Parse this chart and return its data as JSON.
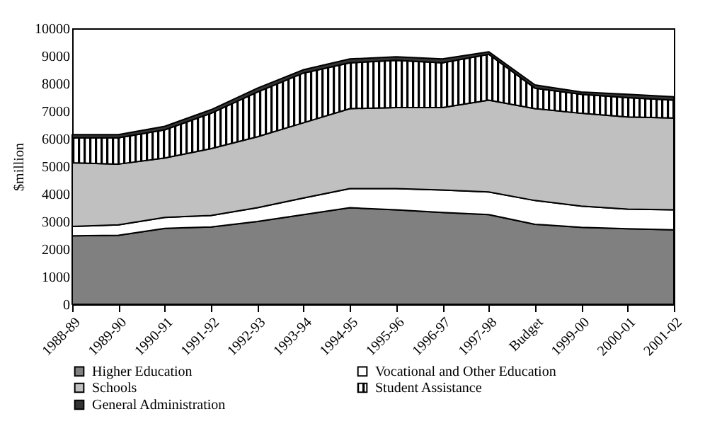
{
  "chart_data": {
    "type": "area",
    "stacked": true,
    "ylabel": "$million",
    "categories": [
      "1988-89",
      "1989-90",
      "1990-91",
      "1991-92",
      "1992-93",
      "1993-94",
      "1994-95",
      "1995-96",
      "1996-97",
      "1997-98",
      "Budget",
      "1999-00",
      "2000-01",
      "2001-02"
    ],
    "series": [
      {
        "name": "Higher Education",
        "color": "#808080",
        "values": [
          2480,
          2500,
          2750,
          2800,
          3000,
          3250,
          3500,
          3420,
          3330,
          3250,
          2900,
          2790,
          2740,
          2700
        ]
      },
      {
        "name": "Vocational and Other Education",
        "color": "#ffffff",
        "values": [
          340,
          380,
          400,
          420,
          500,
          600,
          690,
          770,
          810,
          820,
          860,
          770,
          710,
          720
        ]
      },
      {
        "name": "Schools",
        "color": "#c0c0c0",
        "values": [
          2310,
          2200,
          2150,
          2420,
          2570,
          2730,
          2900,
          2940,
          2990,
          3330,
          3330,
          3360,
          3340,
          3330
        ]
      },
      {
        "name": "Student Assistance",
        "color": "#000000",
        "values": [
          900,
          950,
          1020,
          1280,
          1620,
          1800,
          1660,
          1710,
          1620,
          1660,
          740,
          690,
          700,
          650
        ]
      },
      {
        "name": "General Administration",
        "color": "#333333",
        "values": [
          120,
          120,
          130,
          130,
          140,
          120,
          140,
          130,
          140,
          90,
          120,
          80,
          120,
          120
        ]
      }
    ],
    "ylim": [
      0,
      10000
    ],
    "yticks": [
      0,
      1000,
      2000,
      3000,
      4000,
      5000,
      6000,
      7000,
      8000,
      9000,
      10000
    ],
    "grid": false,
    "legend": "bottom"
  }
}
